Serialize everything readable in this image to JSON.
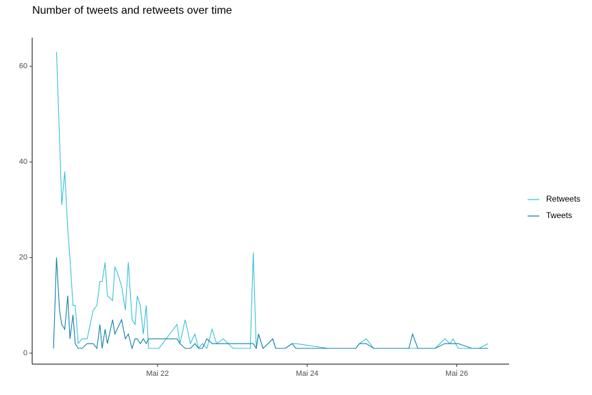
{
  "chart_data": {
    "type": "line",
    "title": "Number of tweets and retweets over time",
    "x": [
      20.61,
      20.65,
      20.69,
      20.72,
      20.76,
      20.8,
      20.83,
      20.87,
      20.9,
      20.94,
      20.99,
      21.06,
      21.14,
      21.19,
      21.23,
      21.26,
      21.3,
      21.33,
      21.4,
      21.43,
      21.46,
      21.52,
      21.57,
      21.61,
      21.66,
      21.7,
      21.73,
      21.77,
      21.81,
      21.85,
      21.88,
      22.02,
      22.26,
      22.3,
      22.37,
      22.44,
      22.5,
      22.55,
      22.6,
      22.66,
      22.73,
      22.79,
      22.88,
      23.01,
      23.24,
      23.28,
      23.32,
      23.35,
      23.41,
      23.48,
      23.54,
      23.58,
      23.71,
      23.8,
      23.85,
      24.28,
      24.65,
      24.7,
      24.79,
      24.89,
      25.36,
      25.41,
      25.48,
      25.71,
      25.84,
      25.91,
      25.95,
      26.02,
      26.2,
      26.3,
      26.42
    ],
    "series": [
      {
        "name": "Retweets",
        "color": "#35c0d8",
        "values": [
          null,
          63,
          45,
          31,
          38,
          26,
          20,
          10,
          10,
          2,
          3,
          3,
          9,
          10,
          15,
          15,
          19,
          12,
          11,
          18,
          17,
          14,
          9,
          19,
          7,
          6,
          12,
          10,
          4,
          10,
          1,
          1,
          6,
          2,
          7,
          2,
          4,
          1,
          2,
          1,
          5,
          2,
          3,
          1,
          1,
          21,
          1,
          4,
          1,
          2,
          3,
          1,
          1,
          2,
          2,
          1,
          1,
          2,
          3,
          1,
          1,
          1,
          1,
          1,
          3,
          2,
          3,
          1,
          1,
          1,
          2
        ]
      },
      {
        "name": "Tweets",
        "color": "#0e7fa6",
        "values": [
          1,
          20,
          9,
          6,
          5,
          12,
          3,
          8,
          2,
          1,
          1,
          2,
          2,
          1,
          6,
          1,
          5,
          2,
          7,
          4,
          5,
          7,
          3,
          4,
          1,
          3,
          3,
          2,
          3,
          2,
          3,
          3,
          3,
          2,
          1,
          1,
          2,
          1,
          1,
          3,
          2,
          2,
          2,
          2,
          2,
          2,
          1,
          4,
          1,
          2,
          3,
          1,
          1,
          2,
          1,
          1,
          1,
          2,
          2,
          1,
          1,
          4,
          1,
          1,
          2,
          2,
          2,
          2,
          1,
          1,
          1
        ]
      }
    ],
    "xlim": [
      20.325,
      26.7
    ],
    "xticks": [
      {
        "value": 22,
        "label": "Mai 22"
      },
      {
        "value": 24,
        "label": "Mai 24"
      },
      {
        "value": 26,
        "label": "Mai 26"
      }
    ],
    "ylim": [
      -2.3,
      66
    ],
    "yticks": [
      0,
      20,
      40,
      60
    ],
    "grid": false,
    "legend": "right"
  }
}
